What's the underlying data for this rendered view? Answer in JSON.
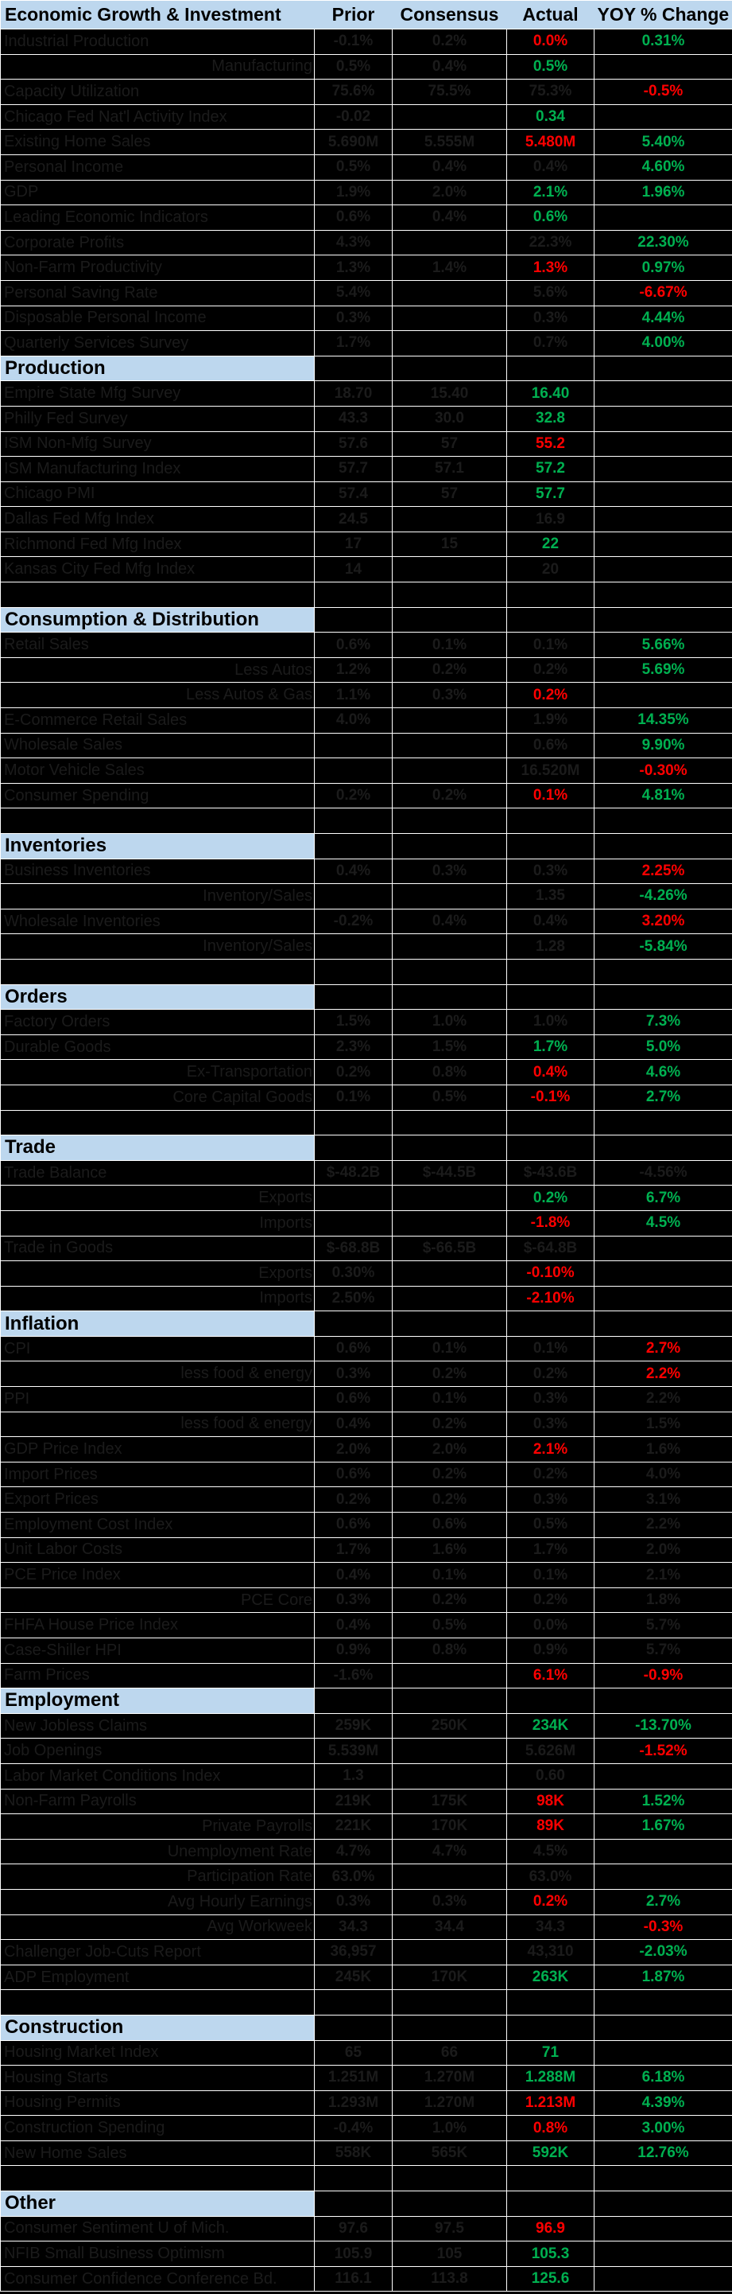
{
  "colors": {
    "green": "#00B050",
    "red": "#FF0000",
    "dim": "#1B1B1B",
    "header_bg": "#BDD7EE",
    "grid": "#FFFFFF",
    "background": "#000000"
  },
  "table": {
    "columns": [
      "Economic Growth & Investment",
      "Prior",
      "Consensus",
      "Actual",
      "YOY % Change"
    ],
    "rows": [
      {
        "label": "Industrial Production",
        "align": "L",
        "prior": "-0.1%",
        "consensus": "0.2%",
        "actual": "0.0%",
        "actualColor": "red",
        "yoy": "0.31%",
        "yoyColor": "green"
      },
      {
        "label": "Manufacturing",
        "align": "R",
        "prior": "0.5%",
        "consensus": "0.4%",
        "actual": "0.5%",
        "actualColor": "green",
        "yoy": ""
      },
      {
        "label": "Capacity Utilization",
        "align": "L",
        "prior": "75.6%",
        "consensus": "75.5%",
        "actual": "75.3%",
        "yoy": "-0.5%",
        "yoyColor": "red"
      },
      {
        "label": "Chicago Fed Nat'l Activity Index",
        "align": "L",
        "prior": "-0.02",
        "consensus": "",
        "actual": "0.34",
        "actualColor": "green",
        "yoy": ""
      },
      {
        "label": "Existing Home Sales",
        "align": "L",
        "prior": "5.690M",
        "consensus": "5.555M",
        "actual": "5.480M",
        "actualColor": "red",
        "yoy": "5.40%",
        "yoyColor": "green"
      },
      {
        "label": "Personal Income",
        "align": "L",
        "prior": "0.5%",
        "consensus": "0.4%",
        "actual": "0.4%",
        "yoy": "4.60%",
        "yoyColor": "green"
      },
      {
        "label": "GDP",
        "align": "L",
        "prior": "1.9%",
        "consensus": "2.0%",
        "actual": "2.1%",
        "actualColor": "green",
        "yoy": "1.96%",
        "yoyColor": "green"
      },
      {
        "label": "Leading Economic Indicators",
        "align": "L",
        "prior": "0.6%",
        "consensus": "0.4%",
        "actual": "0.6%",
        "actualColor": "green",
        "yoy": ""
      },
      {
        "label": "Corporate Profits",
        "align": "L",
        "prior": "4.3%",
        "consensus": "",
        "actual": "22.3%",
        "yoy": "22.30%",
        "yoyColor": "green"
      },
      {
        "label": "Non-Farm Productivity",
        "align": "L",
        "prior": "1.3%",
        "consensus": "1.4%",
        "actual": "1.3%",
        "actualColor": "red",
        "yoy": "0.97%",
        "yoyColor": "green"
      },
      {
        "label": "Personal Saving Rate",
        "align": "L",
        "prior": "5.4%",
        "consensus": "",
        "actual": "5.6%",
        "yoy": "-6.67%",
        "yoyColor": "red"
      },
      {
        "label": "Disposable Personal Income",
        "align": "L",
        "prior": "0.3%",
        "consensus": "",
        "actual": "0.3%",
        "yoy": "4.44%",
        "yoyColor": "green"
      },
      {
        "label": "Quarterly Services Survey",
        "align": "L",
        "prior": "1.7%",
        "consensus": "",
        "actual": "0.7%",
        "yoy": "4.00%",
        "yoyColor": "green"
      },
      {
        "section": "Production"
      },
      {
        "label": "Empire State Mfg Survey",
        "align": "L",
        "prior": "18.70",
        "consensus": "15.40",
        "actual": "16.40",
        "actualColor": "green",
        "yoy": ""
      },
      {
        "label": "Philly Fed Survey",
        "align": "L",
        "prior": "43.3",
        "consensus": "30.0",
        "actual": "32.8",
        "actualColor": "green",
        "yoy": ""
      },
      {
        "label": "ISM Non-Mfg Survey",
        "align": "L",
        "prior": "57.6",
        "consensus": "57",
        "actual": "55.2",
        "actualColor": "red",
        "yoy": ""
      },
      {
        "label": "ISM Manufacturing Index",
        "align": "L",
        "prior": "57.7",
        "consensus": "57.1",
        "actual": "57.2",
        "actualColor": "green",
        "yoy": ""
      },
      {
        "label": "Chicago PMI",
        "align": "L",
        "prior": "57.4",
        "consensus": "57",
        "actual": "57.7",
        "actualColor": "green",
        "yoy": ""
      },
      {
        "label": "Dallas Fed Mfg Index",
        "align": "L",
        "prior": "24.5",
        "consensus": "",
        "actual": "16.9",
        "yoy": ""
      },
      {
        "label": "Richmond Fed Mfg Index",
        "align": "L",
        "prior": "17",
        "consensus": "15",
        "actual": "22",
        "actualColor": "green",
        "yoy": ""
      },
      {
        "label": "Kansas City Fed Mfg Index",
        "align": "L",
        "prior": "14",
        "consensus": "",
        "actual": "20",
        "yoy": ""
      },
      {
        "spacer": true
      },
      {
        "section": "Consumption & Distribution"
      },
      {
        "label": "Retail Sales",
        "align": "L",
        "prior": "0.6%",
        "consensus": "0.1%",
        "actual": "0.1%",
        "yoy": "5.66%",
        "yoyColor": "green"
      },
      {
        "label": "Less Autos",
        "align": "R",
        "prior": "1.2%",
        "consensus": "0.2%",
        "actual": "0.2%",
        "yoy": "5.69%",
        "yoyColor": "green"
      },
      {
        "label": "Less Autos & Gas",
        "align": "R",
        "prior": "1.1%",
        "consensus": "0.3%",
        "actual": "0.2%",
        "actualColor": "red",
        "yoy": ""
      },
      {
        "label": "E-Commerce Retail Sales",
        "align": "L",
        "prior": "4.0%",
        "consensus": "",
        "actual": "1.9%",
        "yoy": "14.35%",
        "yoyColor": "green"
      },
      {
        "label": "Wholesale Sales",
        "align": "L",
        "prior": "",
        "consensus": "",
        "actual": "0.6%",
        "yoy": "9.90%",
        "yoyColor": "green"
      },
      {
        "label": "Motor Vehicle Sales",
        "align": "L",
        "prior": "",
        "consensus": "",
        "actual": "16.520M",
        "yoy": "-0.30%",
        "yoyColor": "red"
      },
      {
        "label": "Consumer Spending",
        "align": "L",
        "prior": "0.2%",
        "consensus": "0.2%",
        "actual": "0.1%",
        "actualColor": "red",
        "yoy": "4.81%",
        "yoyColor": "green"
      },
      {
        "spacer": true
      },
      {
        "section": "Inventories"
      },
      {
        "label": "Business Inventories",
        "align": "L",
        "prior": "0.4%",
        "consensus": "0.3%",
        "actual": "0.3%",
        "yoy": "2.25%",
        "yoyColor": "red"
      },
      {
        "label": "Inventory/Sales",
        "align": "R",
        "prior": "",
        "consensus": "",
        "actual": "1.35",
        "yoy": "-4.26%",
        "yoyColor": "green"
      },
      {
        "label": "Wholesale Inventories",
        "align": "L",
        "prior": "-0.2%",
        "consensus": "0.4%",
        "actual": "0.4%",
        "yoy": "3.20%",
        "yoyColor": "red"
      },
      {
        "label": "Inventory/Sales",
        "align": "R",
        "prior": "",
        "consensus": "",
        "actual": "1.28",
        "yoy": "-5.84%",
        "yoyColor": "green"
      },
      {
        "spacer": true
      },
      {
        "section": "Orders"
      },
      {
        "label": "Factory Orders",
        "align": "L",
        "prior": "1.5%",
        "consensus": "1.0%",
        "actual": "1.0%",
        "yoy": "7.3%",
        "yoyColor": "green"
      },
      {
        "label": "Durable Goods",
        "align": "L",
        "prior": "2.3%",
        "consensus": "1.5%",
        "actual": "1.7%",
        "actualColor": "green",
        "yoy": "5.0%",
        "yoyColor": "green"
      },
      {
        "label": "Ex-Transportation",
        "align": "R",
        "prior": "0.2%",
        "consensus": "0.8%",
        "actual": "0.4%",
        "actualColor": "red",
        "yoy": "4.6%",
        "yoyColor": "green"
      },
      {
        "label": "Core Capital Goods",
        "align": "R",
        "prior": "0.1%",
        "consensus": "0.5%",
        "actual": "-0.1%",
        "actualColor": "red",
        "yoy": "2.7%",
        "yoyColor": "green"
      },
      {
        "spacer": true
      },
      {
        "section": "Trade"
      },
      {
        "label": "Trade Balance",
        "align": "L",
        "prior": "$-48.2B",
        "consensus": "$-44.5B",
        "actual": "$-43.6B",
        "yoy": "-4.56%"
      },
      {
        "label": "Exports",
        "align": "R",
        "prior": "",
        "consensus": "",
        "actual": "0.2%",
        "actualColor": "green",
        "yoy": "6.7%",
        "yoyColor": "green"
      },
      {
        "label": "Imports",
        "align": "R",
        "prior": "",
        "consensus": "",
        "actual": "-1.8%",
        "actualColor": "red",
        "yoy": "4.5%",
        "yoyColor": "green"
      },
      {
        "label": "Trade in Goods",
        "align": "L",
        "prior": "$-68.8B",
        "consensus": "$-66.5B",
        "actual": "$-64.8B",
        "yoy": ""
      },
      {
        "label": "Exports",
        "align": "R",
        "prior": "0.30%",
        "consensus": "",
        "actual": "-0.10%",
        "actualColor": "red",
        "yoy": ""
      },
      {
        "label": "Imports",
        "align": "R",
        "prior": "2.50%",
        "consensus": "",
        "actual": "-2.10%",
        "actualColor": "red",
        "yoy": ""
      },
      {
        "section": "Inflation"
      },
      {
        "label": "CPI",
        "align": "L",
        "prior": "0.6%",
        "consensus": "0.1%",
        "actual": "0.1%",
        "yoy": "2.7%",
        "yoyColor": "red"
      },
      {
        "label": "less food & energy",
        "align": "R",
        "prior": "0.3%",
        "consensus": "0.2%",
        "actual": "0.2%",
        "yoy": "2.2%",
        "yoyColor": "red"
      },
      {
        "label": "PPI",
        "align": "L",
        "prior": "0.6%",
        "consensus": "0.1%",
        "actual": "0.3%",
        "yoy": "2.2%"
      },
      {
        "label": "less food & energy",
        "align": "R",
        "prior": "0.4%",
        "consensus": "0.2%",
        "actual": "0.3%",
        "yoy": "1.5%"
      },
      {
        "label": "GDP Price Index",
        "align": "L",
        "prior": "2.0%",
        "consensus": "2.0%",
        "actual": "2.1%",
        "actualColor": "red",
        "yoy": "1.6%"
      },
      {
        "label": "Import Prices",
        "align": "L",
        "prior": "0.6%",
        "consensus": "0.2%",
        "actual": "0.2%",
        "yoy": "4.0%"
      },
      {
        "label": "Export Prices",
        "align": "L",
        "prior": "0.2%",
        "consensus": "0.2%",
        "actual": "0.3%",
        "yoy": "3.1%"
      },
      {
        "label": "Employment Cost Index",
        "align": "L",
        "prior": "0.6%",
        "consensus": "0.6%",
        "actual": "0.5%",
        "yoy": "2.2%"
      },
      {
        "label": "Unit Labor Costs",
        "align": "L",
        "prior": "1.7%",
        "consensus": "1.6%",
        "actual": "1.7%",
        "yoy": "2.0%"
      },
      {
        "label": "PCE Price Index",
        "align": "L",
        "prior": "0.4%",
        "consensus": "0.1%",
        "actual": "0.1%",
        "yoy": "2.1%"
      },
      {
        "label": "PCE Core",
        "align": "R",
        "prior": "0.3%",
        "consensus": "0.2%",
        "actual": "0.2%",
        "yoy": "1.8%"
      },
      {
        "label": "FHFA House Price Index",
        "align": "L",
        "prior": "0.4%",
        "consensus": "0.5%",
        "actual": "0.0%",
        "yoy": "5.7%"
      },
      {
        "label": "Case-Shiller HPI",
        "align": "L",
        "prior": "0.9%",
        "consensus": "0.8%",
        "actual": "0.9%",
        "yoy": "5.7%"
      },
      {
        "label": "Farm Prices",
        "align": "L",
        "prior": "-1.6%",
        "consensus": "",
        "actual": "6.1%",
        "actualColor": "red",
        "yoy": "-0.9%",
        "yoyColor": "red"
      },
      {
        "section": "Employment"
      },
      {
        "label": "New Jobless Claims",
        "align": "L",
        "prior": "259K",
        "consensus": "250K",
        "actual": "234K",
        "actualColor": "green",
        "yoy": "-13.70%",
        "yoyColor": "green"
      },
      {
        "label": "Job Openings",
        "align": "L",
        "prior": "5.539M",
        "consensus": "",
        "actual": "5.626M",
        "yoy": "-1.52%",
        "yoyColor": "red"
      },
      {
        "label": "Labor Market Conditions Index",
        "align": "L",
        "prior": "1.3",
        "consensus": "",
        "actual": "0.60",
        "yoy": ""
      },
      {
        "label": "Non-Farm Payrolls",
        "align": "L",
        "prior": "219K",
        "consensus": "175K",
        "actual": "98K",
        "actualColor": "red",
        "yoy": "1.52%",
        "yoyColor": "green"
      },
      {
        "label": "Private Payrolls",
        "align": "R",
        "prior": "221K",
        "consensus": "170K",
        "actual": "89K",
        "actualColor": "red",
        "yoy": "1.67%",
        "yoyColor": "green"
      },
      {
        "label": "Unemployment Rate",
        "align": "R",
        "prior": "4.7%",
        "consensus": "4.7%",
        "actual": "4.5%",
        "yoy": ""
      },
      {
        "label": "Participation Rate",
        "align": "R",
        "prior": "63.0%",
        "consensus": "",
        "actual": "63.0%",
        "yoy": ""
      },
      {
        "label": "Avg Hourly Earnings",
        "align": "R",
        "prior": "0.3%",
        "consensus": "0.3%",
        "actual": "0.2%",
        "actualColor": "red",
        "yoy": "2.7%",
        "yoyColor": "green"
      },
      {
        "label": "Avg Workweek",
        "align": "R",
        "prior": "34.3",
        "consensus": "34.4",
        "actual": "34.3",
        "yoy": "-0.3%",
        "yoyColor": "red"
      },
      {
        "label": "Challenger Job-Cuts Report",
        "align": "L",
        "prior": "36,957",
        "consensus": "",
        "actual": "43,310",
        "yoy": "-2.03%",
        "yoyColor": "green"
      },
      {
        "label": "ADP Employment",
        "align": "L",
        "prior": "245K",
        "consensus": "170K",
        "actual": "263K",
        "actualColor": "green",
        "yoy": "1.87%",
        "yoyColor": "green"
      },
      {
        "spacer": true
      },
      {
        "section": "Construction"
      },
      {
        "label": "Housing Market Index",
        "align": "L",
        "prior": "65",
        "consensus": "66",
        "actual": "71",
        "actualColor": "green",
        "yoy": ""
      },
      {
        "label": "Housing Starts",
        "align": "L",
        "prior": "1.251M",
        "consensus": "1.270M",
        "actual": "1.288M",
        "actualColor": "green",
        "yoy": "6.18%",
        "yoyColor": "green"
      },
      {
        "label": "Housing Permits",
        "align": "L",
        "prior": "1.293M",
        "consensus": "1.270M",
        "actual": "1.213M",
        "actualColor": "red",
        "yoy": "4.39%",
        "yoyColor": "green"
      },
      {
        "label": "Construction Spending",
        "align": "L",
        "prior": "-0.4%",
        "consensus": "1.0%",
        "actual": "0.8%",
        "actualColor": "red",
        "yoy": "3.00%",
        "yoyColor": "green"
      },
      {
        "label": "New Home Sales",
        "align": "L",
        "prior": "558K",
        "consensus": "565K",
        "actual": "592K",
        "actualColor": "green",
        "yoy": "12.76%",
        "yoyColor": "green"
      },
      {
        "spacer": true
      },
      {
        "section": "Other"
      },
      {
        "label": "Consumer Sentiment U of Mich.",
        "align": "L",
        "prior": "97.6",
        "consensus": "97.5",
        "actual": "96.9",
        "actualColor": "red",
        "yoy": ""
      },
      {
        "label": "NFIB Small Business Optimism",
        "align": "L",
        "prior": "105.9",
        "consensus": "105",
        "actual": "105.3",
        "actualColor": "green",
        "yoy": ""
      },
      {
        "label": "Consumer Confidence Conference Bd.",
        "align": "L",
        "prior": "116.1",
        "consensus": "113.8",
        "actual": "125.6",
        "actualColor": "green",
        "yoy": ""
      }
    ]
  }
}
